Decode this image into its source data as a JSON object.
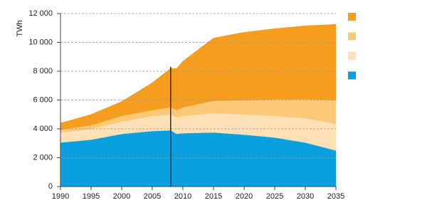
{
  "chart_data": {
    "type": "stacked_area",
    "y_label": "TWh",
    "x": [
      1990,
      1995,
      2000,
      2005,
      2008,
      2009,
      2010,
      2015,
      2020,
      2025,
      2030,
      2035
    ],
    "series": [
      {
        "color": "#0a9fdf",
        "values": [
          3050,
          3250,
          3650,
          3850,
          3900,
          3650,
          3700,
          3750,
          3600,
          3400,
          3050,
          2500
        ]
      },
      {
        "color": "#fde0b6",
        "values": [
          700,
          750,
          850,
          1050,
          1100,
          1150,
          1200,
          1350,
          1400,
          1500,
          1700,
          1850
        ]
      },
      {
        "color": "#fbc877",
        "values": [
          200,
          250,
          400,
          400,
          500,
          500,
          600,
          850,
          1000,
          1150,
          1300,
          1650
        ]
      },
      {
        "color": "#f59d1f",
        "values": [
          450,
          750,
          1000,
          1900,
          2700,
          2900,
          3200,
          4350,
          4700,
          4900,
          5100,
          5250
        ]
      }
    ],
    "xlim": [
      1990,
      2035
    ],
    "xticks": [
      1990,
      1995,
      2000,
      2005,
      2010,
      2015,
      2020,
      2025,
      2030,
      2035
    ],
    "ylim": [
      0,
      12000
    ],
    "yticks": [
      0,
      {
        "value": 2000,
        "label": "2 000"
      },
      {
        "value": 4000,
        "label": "4 000"
      },
      {
        "value": 6000,
        "label": "6 000"
      },
      {
        "value": 8000,
        "label": "8 000"
      },
      {
        "value": 10000,
        "label": "10 000"
      },
      {
        "value": 12000,
        "label": "12 000"
      }
    ],
    "grid": true,
    "vline": 2008
  }
}
